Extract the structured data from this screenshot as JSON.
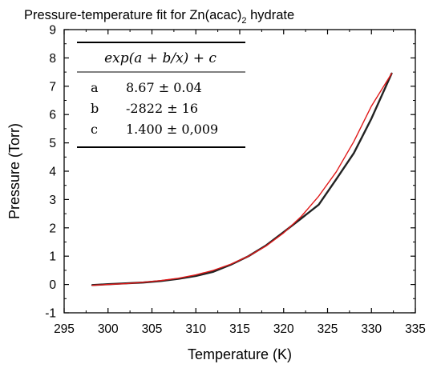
{
  "title": {
    "main": "Pressure-temperature fit for Zn(acac)",
    "subscript": "2",
    "suffix": " hydrate"
  },
  "fit_table": {
    "header": "exp(a + b/x) + c",
    "rows": [
      {
        "param": "a",
        "value": "8.67 ± 0.04"
      },
      {
        "param": "b",
        "value": "-2822 ± 16"
      },
      {
        "param": "c",
        "value": "1.400 ± 0,009"
      }
    ]
  },
  "colors": {
    "data": "#222222",
    "fit": "#e01818",
    "axis": "#000000"
  },
  "chart_data": {
    "type": "line",
    "xlabel": "Temperature (K)",
    "ylabel": "Pressure (Torr)",
    "xlim": [
      295,
      335
    ],
    "ylim": [
      -1,
      9
    ],
    "xticks": [
      295,
      300,
      305,
      310,
      315,
      320,
      325,
      330,
      335
    ],
    "yticks": [
      -1,
      0,
      1,
      2,
      3,
      4,
      5,
      6,
      7,
      8,
      9
    ],
    "grid": false,
    "series": [
      {
        "style": "data",
        "x": [
          298.2,
          300,
          302,
          304,
          306,
          308,
          310,
          312,
          314,
          316,
          318,
          320,
          322,
          324,
          326,
          328,
          330,
          332.3
        ],
        "y": [
          -0.02,
          0.01,
          0.04,
          0.07,
          0.12,
          0.2,
          0.3,
          0.45,
          0.7,
          1.0,
          1.38,
          1.85,
          2.33,
          2.82,
          3.72,
          4.64,
          5.86,
          7.45
        ]
      },
      {
        "style": "fit",
        "x": [
          298.2,
          300,
          302,
          304,
          306,
          308,
          310,
          312,
          314,
          316,
          318,
          320,
          322,
          324,
          326,
          328,
          330,
          332.3
        ],
        "y": [
          -0.03,
          0.0,
          0.03,
          0.08,
          0.14,
          0.22,
          0.34,
          0.5,
          0.72,
          1.0,
          1.36,
          1.82,
          2.4,
          3.12,
          3.98,
          5.05,
          6.3,
          7.45
        ]
      }
    ]
  }
}
